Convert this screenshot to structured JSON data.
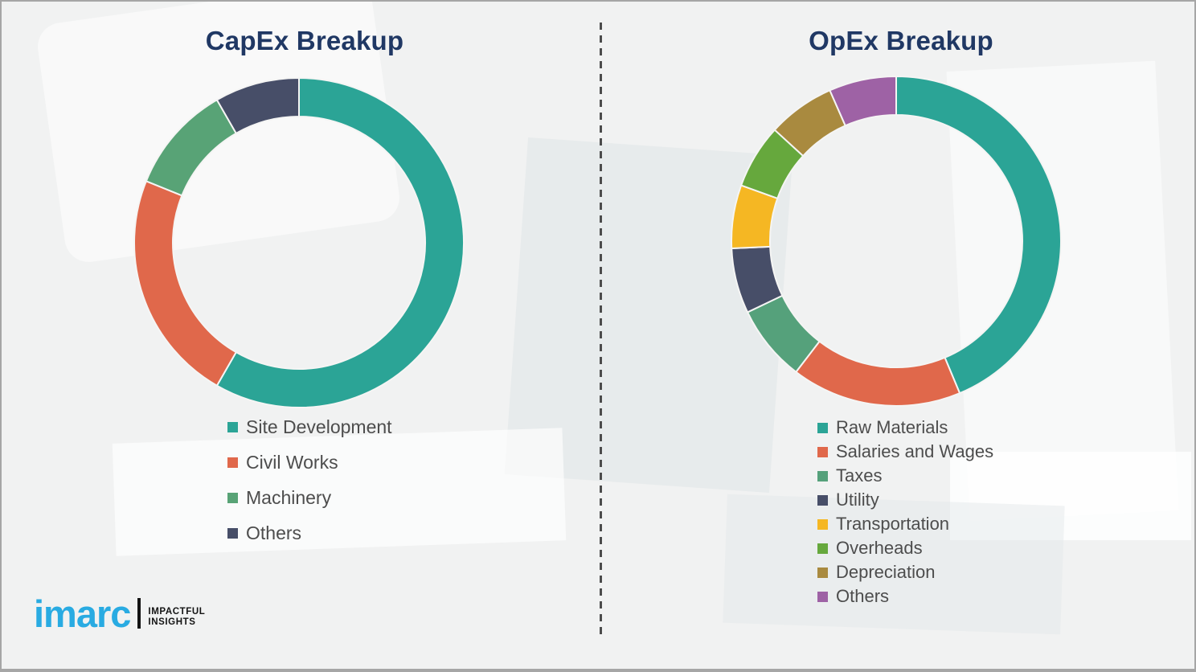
{
  "chart_data": [
    {
      "type": "donut",
      "title": "CapEx Breakup",
      "categories": [
        "Site Development",
        "Civil Works",
        "Machinery",
        "Others"
      ],
      "values": [
        58.3,
        22.8,
        10.6,
        8.3
      ],
      "colors": [
        "#2ba496",
        "#e0684b",
        "#58a376",
        "#474e68"
      ],
      "start_angle_deg": 0,
      "direction": "clockwise",
      "legend_position": "below-left",
      "data_labels": "none"
    },
    {
      "type": "donut",
      "title": "OpEx Breakup",
      "categories": [
        "Raw Materials",
        "Salaries and Wages",
        "Taxes",
        "Utility",
        "Transportation",
        "Overheads",
        "Depreciation",
        "Others"
      ],
      "values": [
        43.7,
        16.7,
        7.5,
        6.4,
        6.2,
        6.3,
        6.6,
        6.6
      ],
      "colors": [
        "#2ba496",
        "#e0684b",
        "#55a17b",
        "#474e68",
        "#f5b723",
        "#66a83d",
        "#a98a3f",
        "#9e62a5"
      ],
      "start_angle_deg": 0,
      "direction": "clockwise",
      "legend_position": "below-left",
      "data_labels": "none"
    }
  ],
  "style": {
    "title_color": "#203864",
    "legend_text_color": "#4d4d4d",
    "segment_separator_color": "#f5f5f4"
  },
  "logo": {
    "brand": "imarc",
    "tagline_1": "IMPACTFUL",
    "tagline_2": "INSIGHTS",
    "brand_color": "#29abe2"
  }
}
